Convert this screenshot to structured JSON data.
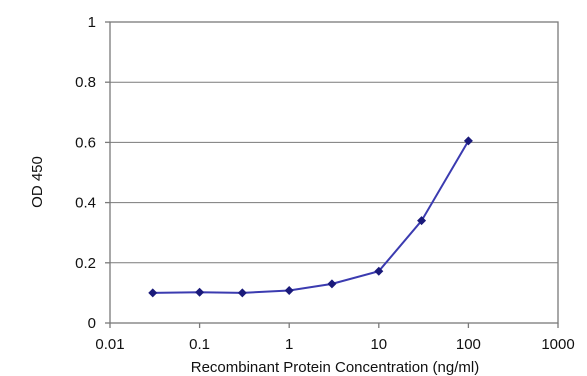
{
  "chart_data": {
    "type": "line",
    "title": "",
    "xlabel": "Recombinant Protein Concentration (ng/ml)",
    "ylabel": "OD 450",
    "xscale": "log",
    "xlim": [
      0.01,
      1000
    ],
    "ylim": [
      0,
      1
    ],
    "xticks": [
      "0.01",
      "0.1",
      "1",
      "10",
      "100",
      "1000"
    ],
    "yticks": [
      "0",
      "0.2",
      "0.4",
      "0.6",
      "0.8",
      "1"
    ],
    "grid": "horizontal",
    "legend": "none",
    "series": [
      {
        "x": [
          0.03,
          0.1,
          0.3,
          1,
          3,
          10,
          30,
          100
        ],
        "y": [
          0.1,
          0.102,
          0.1,
          0.108,
          0.13,
          0.172,
          0.34,
          0.605
        ]
      }
    ],
    "colors": {
      "line": "#3b3bb0",
      "marker": "#1a1a7a",
      "grid": "#7a7a7a",
      "axes": "#7a7a7a"
    }
  }
}
